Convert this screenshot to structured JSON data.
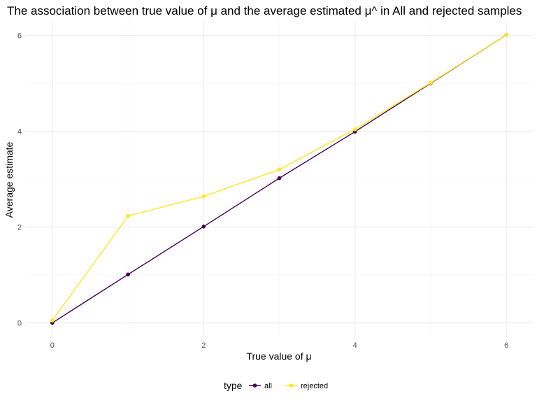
{
  "chart_data": {
    "type": "line",
    "title": "The association between true value of μ and the average estimated μ^ in All and rejected samples",
    "xlabel": "True value of μ",
    "ylabel": "Average estimate",
    "x": [
      0,
      1,
      2,
      3,
      4,
      5,
      6
    ],
    "series": [
      {
        "name": "all",
        "values": [
          0.0,
          1.01,
          2.01,
          3.02,
          3.99,
          5.0,
          6.01
        ],
        "color": "#440154"
      },
      {
        "name": "rejected",
        "values": [
          0.05,
          2.23,
          2.64,
          3.2,
          4.04,
          5.01,
          6.01
        ],
        "color": "#FDE725"
      }
    ],
    "xlim": [
      -0.35,
      6.35
    ],
    "ylim": [
      -0.3,
      6.3
    ],
    "xticks": [
      0,
      2,
      4,
      6
    ],
    "yticks": [
      0,
      2,
      4,
      6
    ],
    "grid": true,
    "legend": {
      "title": "type",
      "position": "bottom"
    }
  }
}
